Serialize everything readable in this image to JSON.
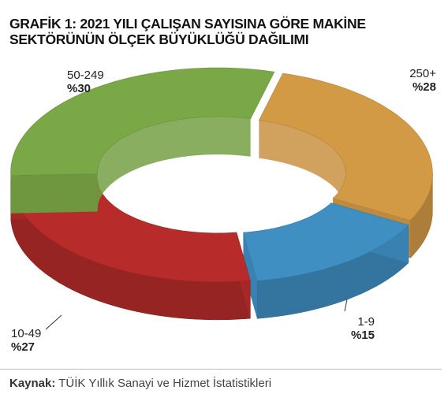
{
  "chart_data": {
    "type": "donut",
    "title": "GRAFİK 1: 2021 YILI ÇALIŞAN SAYISINA GÖRE MAKİNE SEKTÖRÜNÜN ÖLÇEK BÜYÜKLÜĞÜ DAĞILIMI",
    "categories": [
      "250+",
      "1-9",
      "10-49",
      "50-249"
    ],
    "values": [
      28,
      15,
      27,
      30
    ],
    "value_labels": [
      "%28",
      "%15",
      "%27",
      "%30"
    ],
    "colors": [
      "#d29a45",
      "#3f8fc3",
      "#b72c2a",
      "#7aa847"
    ]
  },
  "source": {
    "label": "Kaynak:",
    "text": "TÜİK Yıllık Sanayi ve Hizmet İstatistikleri"
  }
}
